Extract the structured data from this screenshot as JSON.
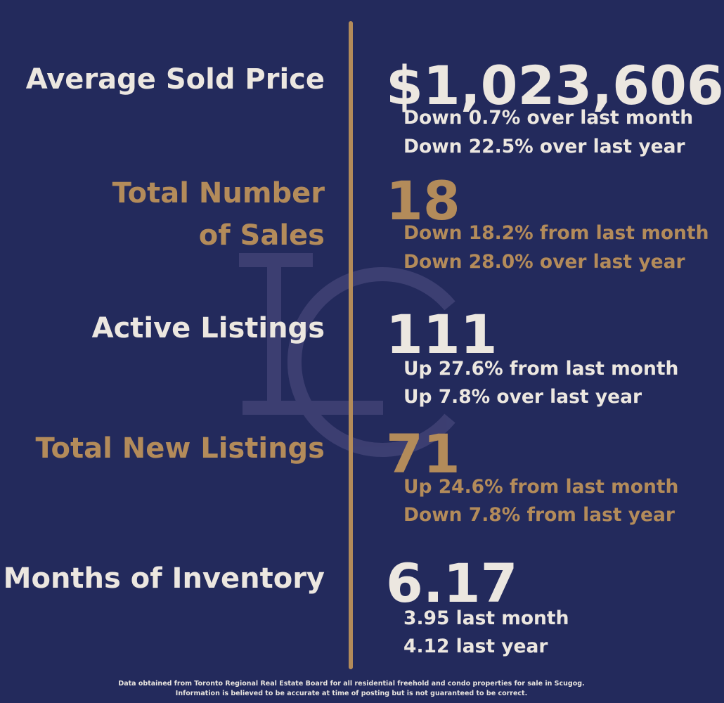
{
  "colors": {
    "background": "#232a5c",
    "cream": "#ece7e0",
    "gold": "#b38b5a"
  },
  "watermark": {
    "icon": "lc-monogram-icon"
  },
  "stats": [
    {
      "label": "Average Sold Price",
      "value": "$1,023,606",
      "lines": [
        "Down 0.7% over last month",
        "Down 22.5% over last year"
      ]
    },
    {
      "label_lines": [
        "Total Number",
        "of Sales"
      ],
      "value": "18",
      "lines": [
        "Down 18.2% from last month",
        "Down 28.0% over last year"
      ]
    },
    {
      "label": "Active Listings",
      "value": "111",
      "lines": [
        "Up 27.6% from last month",
        "Up 7.8% over last year"
      ]
    },
    {
      "label": "Total New Listings",
      "value": "71",
      "lines": [
        "Up 24.6% from last month",
        "Down 7.8% from last year"
      ]
    },
    {
      "label": "Months of Inventory",
      "value": "6.17",
      "lines": [
        "3.95 last month",
        "4.12 last year"
      ]
    }
  ],
  "footer": [
    "Data obtained from Toronto Regional Real Estate Board for all residential freehold and condo properties for sale in Scugog.",
    "Information is believed to be accurate at time of posting but is not guaranteed to be correct."
  ]
}
